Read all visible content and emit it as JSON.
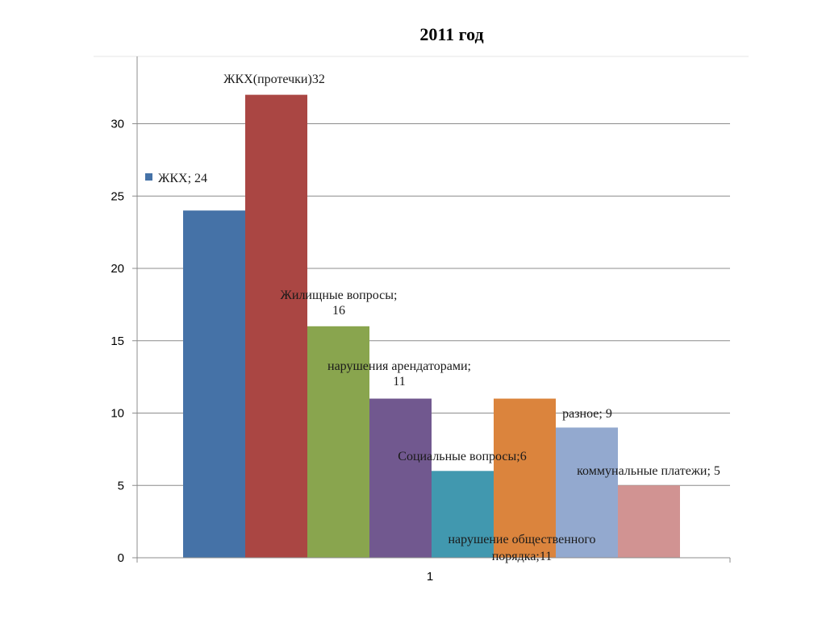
{
  "title": "2011 год",
  "legend": {
    "label": "ЖКХ; 24"
  },
  "chart_data": {
    "type": "bar",
    "title": "2011 год",
    "xlabel": "",
    "ylabel": "",
    "ylim": [
      0,
      33
    ],
    "yticks": [
      0,
      5,
      10,
      15,
      20,
      25,
      30
    ],
    "grid": true,
    "categories": [
      "1"
    ],
    "series": [
      {
        "name": "ЖКХ",
        "values": [
          24
        ],
        "color": "#4572A7"
      },
      {
        "name": "ЖКХ(протечки)",
        "values": [
          32
        ],
        "color": "#AA4643"
      },
      {
        "name": "Жилищные вопросы",
        "values": [
          16
        ],
        "color": "#89A54E"
      },
      {
        "name": "нарушения арендаторами",
        "values": [
          11
        ],
        "color": "#71588F"
      },
      {
        "name": "Социальные вопросы",
        "values": [
          6
        ],
        "color": "#4198AF"
      },
      {
        "name": "нарушение общественного порядка",
        "values": [
          11
        ],
        "color": "#DB843D"
      },
      {
        "name": "разное",
        "values": [
          9
        ],
        "color": "#93A9CF"
      },
      {
        "name": "коммунальные платежи",
        "values": [
          5
        ],
        "color": "#D19392"
      }
    ],
    "data_labels": [
      [
        "ЖКХ(протечки)32"
      ],
      [
        "Жилищные вопросы;",
        "16"
      ],
      [
        "нарушения арендаторами;",
        "11"
      ],
      [
        "Социальные вопросы;6"
      ],
      [
        "нарушение общественного",
        "порядка;11"
      ],
      [
        "разное; 9"
      ],
      [
        "коммунальные платежи; 5"
      ]
    ]
  }
}
